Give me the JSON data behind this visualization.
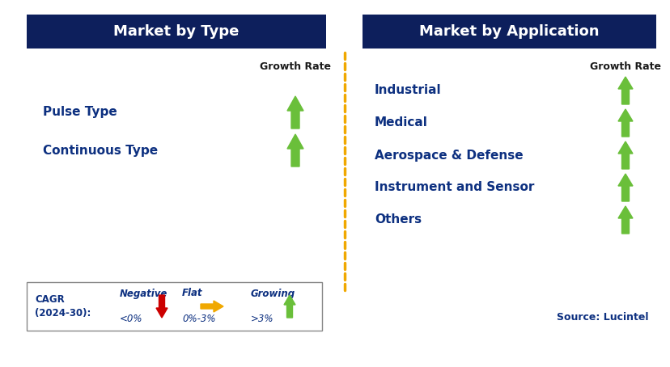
{
  "title_left": "Market by Type",
  "title_right": "Market by Application",
  "header_bg_color": "#0d1f5c",
  "header_text_color": "#ffffff",
  "label_color": "#0d3080",
  "growth_rate_color": "#1a1a1a",
  "left_items": [
    "Pulse Type",
    "Continuous Type"
  ],
  "right_items": [
    "Industrial",
    "Medical",
    "Aerospace & Defense",
    "Instrument and Sensor",
    "Others"
  ],
  "green_arrow_color": "#6abf3a",
  "red_arrow_color": "#cc0000",
  "orange_arrow_color": "#f0a800",
  "dashed_line_color": "#f0a800",
  "cagr_label_line1": "CAGR",
  "cagr_label_line2": "(2024-30):",
  "legend_negative_label": "Negative",
  "legend_negative_sub": "<0%",
  "legend_flat_label": "Flat",
  "legend_flat_sub": "0%-3%",
  "legend_growing_label": "Growing",
  "legend_growing_sub": ">3%",
  "source_text": "Source: Lucintel",
  "background_color": "#ffffff",
  "fig_width": 8.29,
  "fig_height": 4.54,
  "dpi": 100
}
